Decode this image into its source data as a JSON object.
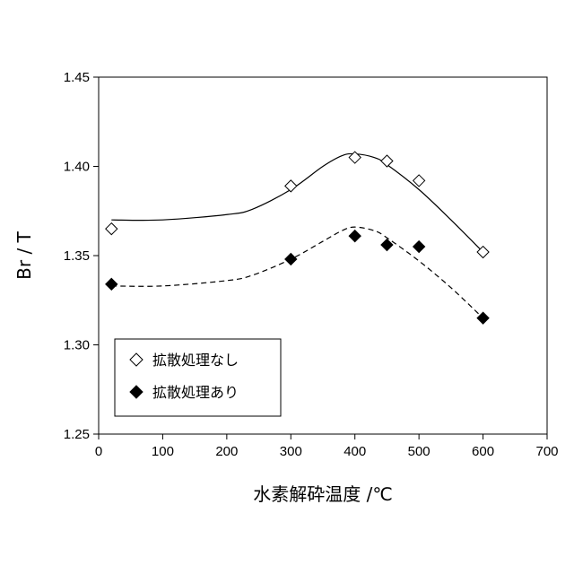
{
  "chart_data": {
    "type": "scatter",
    "xlabel": "水素解砕温度 /℃",
    "ylabel": "Br / T",
    "xlim": [
      0,
      700
    ],
    "ylim": [
      1.25,
      1.45
    ],
    "x_ticks": [
      "0",
      "100",
      "200",
      "300",
      "400",
      "500",
      "600",
      "700"
    ],
    "y_ticks": [
      "1.25",
      "1.30",
      "1.35",
      "1.40",
      "1.45"
    ],
    "grid": false,
    "legend_position": "bottom-left",
    "series": [
      {
        "name": "拡散処理なし",
        "marker": "open-diamond",
        "line": "solid",
        "x": [
          20,
          300,
          400,
          450,
          500,
          600
        ],
        "y": [
          1.365,
          1.389,
          1.405,
          1.403,
          1.392,
          1.352
        ]
      },
      {
        "name": "拡散処理あり",
        "marker": "filled-diamond",
        "line": "dashed",
        "x": [
          20,
          300,
          400,
          450,
          500,
          600
        ],
        "y": [
          1.334,
          1.348,
          1.361,
          1.356,
          1.355,
          1.315
        ]
      }
    ],
    "trend_curves": [
      {
        "series": "拡散処理なし",
        "x": [
          20,
          100,
          200,
          240,
          300,
          350,
          380,
          400,
          430,
          450,
          500,
          550,
          600
        ],
        "y": [
          1.37,
          1.37,
          1.373,
          1.376,
          1.387,
          1.4,
          1.406,
          1.407,
          1.405,
          1.401,
          1.387,
          1.37,
          1.352
        ]
      },
      {
        "series": "拡散処理あり",
        "x": [
          20,
          100,
          200,
          240,
          300,
          350,
          380,
          400,
          430,
          450,
          500,
          550,
          600
        ],
        "y": [
          1.333,
          1.333,
          1.336,
          1.339,
          1.348,
          1.358,
          1.364,
          1.366,
          1.364,
          1.36,
          1.347,
          1.332,
          1.315
        ]
      }
    ]
  }
}
